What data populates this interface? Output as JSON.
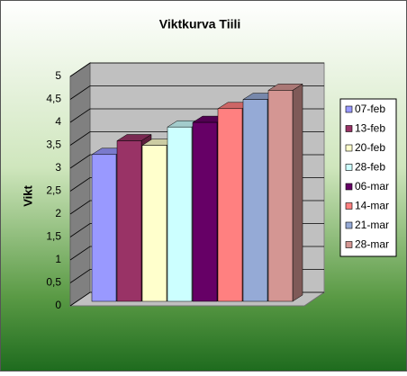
{
  "chart_data": {
    "type": "bar3d",
    "title": "Viktkurva Tiili",
    "y_label": "Vikt",
    "categories": [
      null
    ],
    "series": [
      {
        "name": "07-feb",
        "color": "#9999ff",
        "values": [
          3.2
        ]
      },
      {
        "name": "13-feb",
        "color": "#993366",
        "values": [
          3.5
        ]
      },
      {
        "name": "20-feb",
        "color": "#ffffcc",
        "values": [
          3.4
        ]
      },
      {
        "name": "28-feb",
        "color": "#ccffff",
        "values": [
          3.8
        ]
      },
      {
        "name": "06-mar",
        "color": "#660066",
        "values": [
          3.9
        ]
      },
      {
        "name": "14-mar",
        "color": "#ff8080",
        "values": [
          4.2
        ]
      },
      {
        "name": "21-mar",
        "color": "#95aad6",
        "values": [
          4.4
        ]
      },
      {
        "name": "28-mar",
        "color": "#d49693",
        "values": [
          4.6
        ]
      }
    ],
    "ylim": [
      0,
      5
    ],
    "yticks": [
      0,
      {
        "value": 0.5,
        "label": "0,5"
      },
      1,
      {
        "value": 1.5,
        "label": "1,5"
      },
      2,
      {
        "value": 2.5,
        "label": "2,5"
      },
      3,
      {
        "value": 3.5,
        "label": "3,5"
      },
      4,
      {
        "value": 4.5,
        "label": "4,5"
      },
      5
    ],
    "grid": true,
    "legend": "right"
  }
}
